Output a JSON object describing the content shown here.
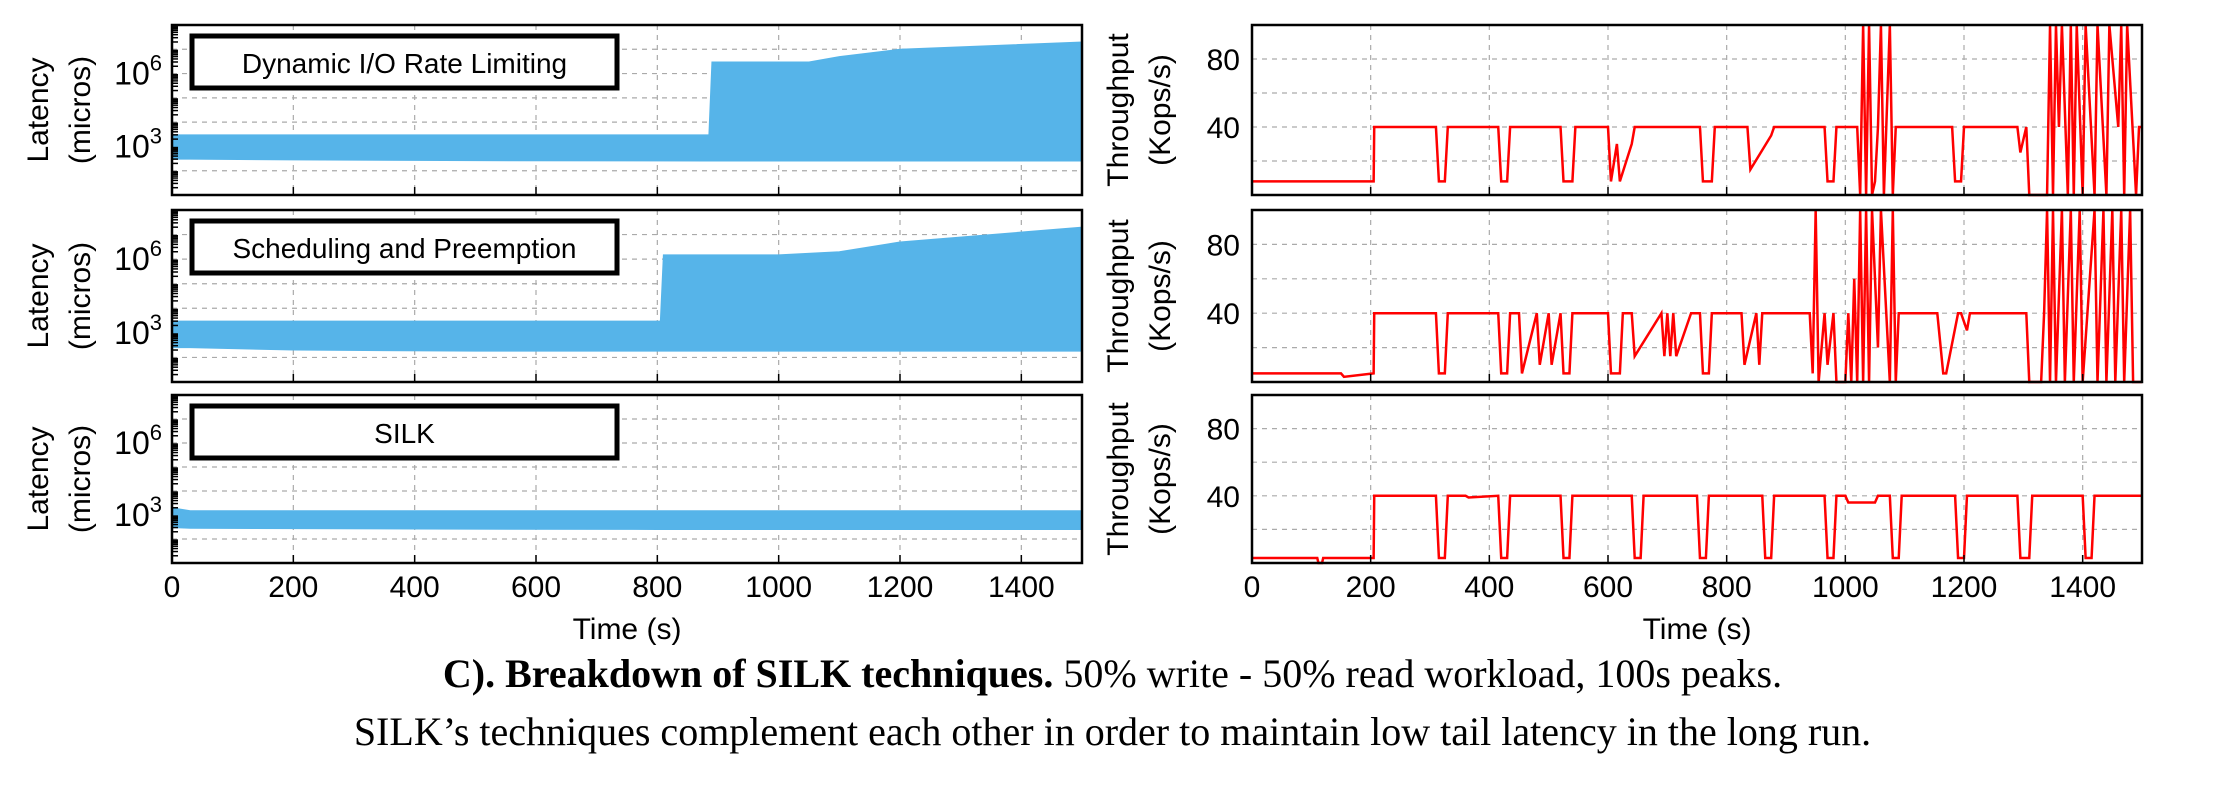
{
  "caption": {
    "bold": "C). Breakdown of SILK techniques.",
    "rest": " 50% write - 50% read workload, 100s peaks.",
    "line2": "SILK’s techniques complement each other in order to maintain low tail latency in the long run."
  },
  "colors": {
    "latency": "#56b4e9",
    "throughput": "#ff0000",
    "grid": "#aaaaaa",
    "axis": "#000000"
  },
  "chart_data": [
    {
      "type": "area",
      "panel": "latency",
      "row": 0,
      "title": "Dynamic I/O Rate Limiting",
      "xlabel": "",
      "ylabel": "Latency",
      "ylabel2": "(micros)",
      "yscale": "log",
      "xlim": [
        0,
        1500
      ],
      "ylim": [
        10,
        100000000
      ],
      "yticks": [
        {
          "v": 1000,
          "base": "10",
          "exp": "3"
        },
        {
          "v": 1000000,
          "base": "10",
          "exp": "6"
        }
      ],
      "xticks": [],
      "series": [
        {
          "x": [
            0,
            30,
            200,
            500,
            885,
            890,
            1050,
            1100,
            1200,
            1500
          ],
          "high": [
            3000,
            3000,
            3000,
            3000,
            3000,
            3000000,
            3000000,
            5000000,
            10000000,
            20000000
          ],
          "low": [
            300,
            300,
            280,
            260,
            250,
            250,
            250,
            250,
            250,
            250
          ]
        }
      ]
    },
    {
      "type": "area",
      "panel": "latency",
      "row": 1,
      "title": "Scheduling and Preemption",
      "xlabel": "",
      "ylabel": "Latency",
      "ylabel2": "(micros)",
      "yscale": "log",
      "xlim": [
        0,
        1500
      ],
      "ylim": [
        10,
        100000000
      ],
      "yticks": [
        {
          "v": 1000,
          "base": "10",
          "exp": "3"
        },
        {
          "v": 1000000,
          "base": "10",
          "exp": "6"
        }
      ],
      "xticks": [],
      "series": [
        {
          "x": [
            0,
            30,
            200,
            500,
            805,
            810,
            1000,
            1100,
            1200,
            1500
          ],
          "high": [
            3000,
            3000,
            3000,
            3000,
            3000,
            1500000,
            1500000,
            2000000,
            5000000,
            20000000
          ],
          "low": [
            250,
            250,
            200,
            180,
            180,
            180,
            180,
            180,
            180,
            180
          ]
        }
      ]
    },
    {
      "type": "area",
      "panel": "latency",
      "row": 2,
      "title": "SILK",
      "xlabel": "Time (s)",
      "ylabel": "Latency",
      "ylabel2": "(micros)",
      "yscale": "log",
      "xlim": [
        0,
        1500
      ],
      "ylim": [
        10,
        100000000
      ],
      "yticks": [
        {
          "v": 1000,
          "base": "10",
          "exp": "3"
        },
        {
          "v": 1000000,
          "base": "10",
          "exp": "6"
        }
      ],
      "xticks": [
        0,
        200,
        400,
        600,
        800,
        1000,
        1200,
        1400
      ],
      "series": [
        {
          "x": [
            0,
            30,
            400,
            800,
            1200,
            1500
          ],
          "high": [
            2000,
            1500,
            1500,
            1500,
            1500,
            1500
          ],
          "low": [
            300,
            280,
            260,
            250,
            250,
            250
          ]
        }
      ]
    },
    {
      "type": "line",
      "panel": "throughput",
      "row": 0,
      "xlabel": "",
      "ylabel": "Throughput",
      "ylabel2": "(Kops/s)",
      "xlim": [
        0,
        1500
      ],
      "ylim": [
        0,
        100
      ],
      "yticks": [
        40,
        80
      ],
      "xticks": [],
      "series": [
        {
          "x": [
            0,
            205,
            206,
            310,
            315,
            325,
            330,
            415,
            420,
            430,
            435,
            520,
            525,
            540,
            545,
            600,
            605,
            615,
            620,
            640,
            645,
            755,
            760,
            775,
            780,
            835,
            840,
            875,
            880,
            965,
            970,
            980,
            985,
            1020,
            1025,
            1030,
            1035,
            1040,
            1045,
            1050,
            1055,
            1060,
            1065,
            1075,
            1080,
            1085,
            1090,
            1180,
            1185,
            1195,
            1200,
            1290,
            1295,
            1305,
            1310,
            1340,
            1345,
            1350,
            1355,
            1360,
            1365,
            1375,
            1380,
            1385,
            1390,
            1400,
            1405,
            1420,
            1425,
            1440,
            1445,
            1460,
            1465,
            1470,
            1475,
            1490,
            1495,
            1500
          ],
          "y": [
            8,
            8,
            40,
            40,
            8,
            8,
            40,
            40,
            8,
            8,
            40,
            40,
            8,
            8,
            40,
            40,
            8,
            30,
            8,
            30,
            40,
            40,
            8,
            8,
            40,
            40,
            15,
            35,
            40,
            40,
            8,
            8,
            40,
            40,
            0,
            100,
            0,
            100,
            0,
            8,
            40,
            100,
            0,
            100,
            0,
            40,
            40,
            40,
            8,
            8,
            40,
            40,
            25,
            40,
            0,
            0,
            100,
            0,
            100,
            40,
            100,
            0,
            100,
            0,
            100,
            0,
            100,
            0,
            100,
            0,
            100,
            40,
            100,
            0,
            100,
            0,
            40,
            40
          ]
        }
      ]
    },
    {
      "type": "line",
      "panel": "throughput",
      "row": 1,
      "xlabel": "",
      "ylabel": "Throughput",
      "ylabel2": "(Kops/s)",
      "xlim": [
        0,
        1500
      ],
      "ylim": [
        0,
        100
      ],
      "yticks": [
        40,
        80
      ],
      "xticks": [],
      "series": [
        {
          "x": [
            0,
            150,
            155,
            205,
            206,
            310,
            315,
            325,
            330,
            415,
            420,
            430,
            435,
            450,
            455,
            480,
            485,
            500,
            505,
            520,
            525,
            535,
            540,
            600,
            605,
            620,
            625,
            640,
            645,
            690,
            695,
            700,
            705,
            710,
            715,
            740,
            745,
            755,
            760,
            770,
            775,
            825,
            830,
            850,
            855,
            860,
            865,
            940,
            945,
            950,
            955,
            965,
            970,
            980,
            985,
            1000,
            1005,
            1010,
            1015,
            1020,
            1025,
            1030,
            1035,
            1040,
            1045,
            1055,
            1060,
            1075,
            1080,
            1085,
            1090,
            1150,
            1155,
            1165,
            1170,
            1190,
            1195,
            1205,
            1210,
            1300,
            1305,
            1310,
            1315,
            1330,
            1335,
            1340,
            1345,
            1350,
            1355,
            1365,
            1370,
            1380,
            1385,
            1395,
            1400,
            1420,
            1425,
            1435,
            1440,
            1450,
            1455,
            1465,
            1470,
            1480,
            1485,
            1500
          ],
          "y": [
            5,
            5,
            3,
            5,
            40,
            40,
            5,
            5,
            40,
            40,
            5,
            5,
            40,
            40,
            5,
            40,
            10,
            40,
            10,
            40,
            5,
            5,
            40,
            40,
            5,
            5,
            40,
            40,
            15,
            40,
            15,
            40,
            15,
            40,
            15,
            40,
            40,
            40,
            5,
            5,
            40,
            40,
            10,
            40,
            10,
            40,
            40,
            40,
            5,
            100,
            0,
            40,
            10,
            40,
            0,
            0,
            40,
            0,
            60,
            0,
            100,
            0,
            100,
            0,
            100,
            20,
            100,
            0,
            100,
            0,
            40,
            40,
            40,
            5,
            5,
            40,
            40,
            30,
            40,
            40,
            40,
            0,
            0,
            0,
            40,
            100,
            0,
            100,
            0,
            100,
            0,
            100,
            0,
            100,
            0,
            100,
            0,
            100,
            0,
            100,
            0,
            100,
            0,
            100,
            0,
            0
          ]
        }
      ]
    },
    {
      "type": "line",
      "panel": "throughput",
      "row": 2,
      "xlabel": "Time (s)",
      "ylabel": "Throughput",
      "ylabel2": "(Kops/s)",
      "xlim": [
        0,
        1500
      ],
      "ylim": [
        0,
        100
      ],
      "yticks": [
        40,
        80
      ],
      "xticks": [
        0,
        200,
        400,
        600,
        800,
        1000,
        1200,
        1400
      ],
      "series": [
        {
          "x": [
            0,
            110,
            112,
            118,
            120,
            205,
            206,
            310,
            315,
            325,
            330,
            360,
            365,
            415,
            420,
            430,
            435,
            520,
            525,
            535,
            540,
            640,
            645,
            655,
            660,
            750,
            755,
            765,
            770,
            860,
            865,
            875,
            880,
            965,
            970,
            980,
            985,
            1000,
            1005,
            1050,
            1055,
            1075,
            1080,
            1090,
            1095,
            1185,
            1190,
            1200,
            1205,
            1290,
            1295,
            1310,
            1315,
            1400,
            1405,
            1415,
            1420,
            1500
          ],
          "y": [
            3,
            3,
            0,
            0,
            3,
            3,
            40,
            40,
            3,
            3,
            40,
            40,
            39,
            40,
            3,
            3,
            40,
            40,
            3,
            3,
            40,
            40,
            3,
            3,
            40,
            40,
            3,
            3,
            40,
            40,
            3,
            3,
            40,
            40,
            3,
            3,
            40,
            40,
            36,
            36,
            40,
            40,
            3,
            3,
            40,
            40,
            3,
            3,
            40,
            40,
            3,
            3,
            40,
            40,
            3,
            3,
            40,
            40
          ]
        }
      ]
    }
  ]
}
